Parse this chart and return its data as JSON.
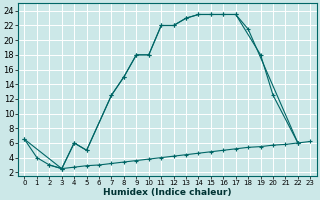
{
  "xlabel": "Humidex (Indice chaleur)",
  "bg_color": "#cce8e8",
  "grid_color": "#ffffff",
  "line_color": "#006666",
  "xlim": [
    -0.5,
    23.5
  ],
  "ylim": [
    1.5,
    25
  ],
  "xticks": [
    0,
    1,
    2,
    3,
    4,
    5,
    6,
    7,
    8,
    9,
    10,
    11,
    12,
    13,
    14,
    15,
    16,
    17,
    18,
    19,
    20,
    21,
    22,
    23
  ],
  "yticks": [
    2,
    4,
    6,
    8,
    10,
    12,
    14,
    16,
    18,
    20,
    22,
    24
  ],
  "curve1_x": [
    0,
    1,
    2,
    3,
    4,
    5,
    7,
    8,
    9,
    10,
    11,
    12,
    13,
    14,
    15,
    16,
    17,
    18,
    22
  ],
  "curve1_y": [
    6.5,
    4.0,
    3.0,
    2.5,
    6.0,
    5.0,
    12.5,
    15.0,
    18.0,
    18.0,
    22.0,
    22.0,
    23.0,
    23.5,
    23.5,
    23.5,
    23.5,
    21.5,
    6.0
  ],
  "curve2_x": [
    0,
    3,
    4,
    5,
    7,
    8,
    9,
    10,
    11,
    12,
    13,
    14,
    15,
    16,
    17,
    19,
    20,
    22
  ],
  "curve2_y": [
    6.5,
    2.5,
    6.0,
    5.0,
    12.5,
    15.0,
    18.0,
    18.0,
    22.0,
    22.0,
    23.0,
    23.5,
    23.5,
    23.5,
    23.5,
    18.0,
    12.5,
    6.0
  ],
  "curve3_x": [
    2,
    3,
    4,
    5,
    6,
    7,
    8,
    9,
    10,
    11,
    12,
    13,
    14,
    15,
    16,
    17,
    18,
    19,
    20,
    21,
    22,
    23
  ],
  "curve3_y": [
    3.0,
    2.5,
    2.7,
    2.9,
    3.0,
    3.2,
    3.4,
    3.6,
    3.8,
    4.0,
    4.2,
    4.4,
    4.6,
    4.8,
    5.0,
    5.2,
    5.4,
    5.5,
    5.7,
    5.8,
    6.0,
    6.2
  ]
}
